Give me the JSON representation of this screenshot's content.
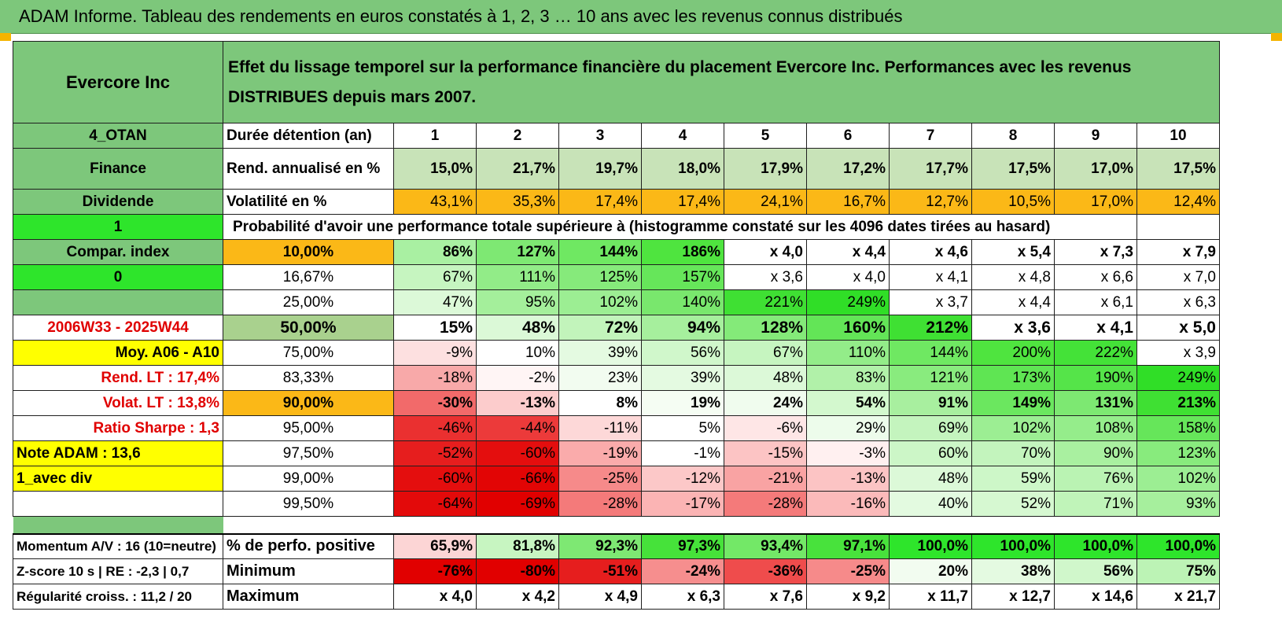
{
  "title": "ADAM Informe. Tableau des rendements en euros constatés à 1, 2, 3 … 10 ans avec les revenus connus distribués",
  "header": {
    "name": "Evercore Inc",
    "description": "Effet du lissage temporel sur la performance financière du placement Evercore Inc. Performances avec les revenus DISTRIBUES depuis mars 2007."
  },
  "side": {
    "code": "4_OTAN",
    "sector": "Finance",
    "type": "Dividende",
    "flag1": "1",
    "compar": "Compar. index",
    "flag0": "0",
    "empty": "",
    "period": "2006W33 - 2025W44",
    "moy": "Moy. A06 - A10",
    "rend_lt": "Rend. LT :    17,4%",
    "volat_lt": "Volat. LT :    13,8%",
    "sharpe": "Ratio Sharpe :     1,3",
    "note": "Note ADAM : 13,6",
    "avec_div": "1_avec div",
    "momentum": "Momentum A/V : 16 (10=neutre)",
    "zscore": "Z-score 10 s | RE : -2,3 | 0,7",
    "regularite": "Régularité croiss. : 11,2 / 20"
  },
  "labels": {
    "duree": "Durée détention (an)",
    "rend": "Rend. annualisé en %",
    "vol": "Volatilité en %",
    "proba": "Probabilité d'avoir une performance totale supérieure à (histogramme constaté sur les 4096 dates tirées au hasard)",
    "pct_pos": "% de perfo. positive",
    "min": "Minimum",
    "max": "Maximum"
  },
  "years": [
    "1",
    "2",
    "3",
    "4",
    "5",
    "6",
    "7",
    "8",
    "9",
    "10"
  ],
  "rend": [
    "15,0%",
    "21,7%",
    "19,7%",
    "18,0%",
    "17,9%",
    "17,2%",
    "17,7%",
    "17,5%",
    "17,0%",
    "17,5%"
  ],
  "vol": [
    "43,1%",
    "35,3%",
    "17,4%",
    "17,4%",
    "24,1%",
    "16,7%",
    "12,7%",
    "10,5%",
    "17,0%",
    "12,4%"
  ],
  "vol_colors": [
    "#fbb817",
    "#fbb817",
    "#fbb817",
    "#fbb817",
    "#fbb817",
    "#fbb817",
    "#fbb817",
    "#fbb817",
    "#fbb817",
    "#fbb817"
  ],
  "prob_rows": [
    {
      "p": "10,00%",
      "bold": true,
      "pbg": "#fbb817",
      "vals": [
        "86%",
        "127%",
        "144%",
        "186%",
        "x 4,0",
        "x 4,4",
        "x 4,6",
        "x 5,4",
        "x 7,3",
        "x 7,9"
      ],
      "colors": [
        "#a9f0a2",
        "#7ee873",
        "#6fe862",
        "#4fe43f",
        "#ffffff",
        "#ffffff",
        "#ffffff",
        "#ffffff",
        "#ffffff",
        "#ffffff"
      ]
    },
    {
      "p": "16,67%",
      "bold": false,
      "pbg": "#ffffff",
      "vals": [
        "67%",
        "111%",
        "125%",
        "157%",
        "x 3,6",
        "x 4,0",
        "x 4,1",
        "x 4,8",
        "x 6,6",
        "x 7,0"
      ],
      "colors": [
        "#c6f5c0",
        "#92ec88",
        "#86ea7b",
        "#66e65a",
        "#ffffff",
        "#ffffff",
        "#ffffff",
        "#ffffff",
        "#ffffff",
        "#ffffff"
      ]
    },
    {
      "p": "25,00%",
      "bold": false,
      "pbg": "#ffffff",
      "vals": [
        "47%",
        "95%",
        "102%",
        "140%",
        "221%",
        "249%",
        "x 3,7",
        "x 4,4",
        "x 6,1",
        "x 6,3"
      ],
      "colors": [
        "#dcf9d8",
        "#a4ef9b",
        "#9cee93",
        "#79e76d",
        "#3fe033",
        "#30de27",
        "#ffffff",
        "#ffffff",
        "#ffffff",
        "#ffffff"
      ]
    },
    {
      "p": "50,00%",
      "bold": true,
      "big": true,
      "pbg": "#a9d18e",
      "vals": [
        "15%",
        "48%",
        "72%",
        "94%",
        "128%",
        "160%",
        "212%",
        "x 3,6",
        "x 4,1",
        "x 5,0"
      ],
      "colors": [
        "#ffffff",
        "#dbf9d7",
        "#c2f4bb",
        "#a6ef9d",
        "#84ea79",
        "#63e557",
        "#3fe033",
        "#ffffff",
        "#ffffff",
        "#ffffff"
      ]
    },
    {
      "p": "75,00%",
      "bold": false,
      "pbg": "#ffffff",
      "vals": [
        "-9%",
        "10%",
        "39%",
        "56%",
        "67%",
        "110%",
        "144%",
        "200%",
        "222%",
        "x 3,9"
      ],
      "colors": [
        "#fde0e0",
        "#ffffff",
        "#e4fae1",
        "#d0f7cb",
        "#c6f5c0",
        "#93ec89",
        "#6fe862",
        "#4fe43f",
        "#44e238",
        "#ffffff"
      ]
    },
    {
      "p": "83,33%",
      "bold": false,
      "pbg": "#ffffff",
      "vals": [
        "-18%",
        "-2%",
        "23%",
        "39%",
        "48%",
        "83%",
        "121%",
        "173%",
        "190%",
        "249%"
      ],
      "colors": [
        "#f8a9a9",
        "#fff5f5",
        "#f2fcf0",
        "#e4fae1",
        "#dcf9d8",
        "#b1f1a9",
        "#89eb7e",
        "#5fe553",
        "#55e449",
        "#30de27"
      ]
    },
    {
      "p": "90,00%",
      "bold": true,
      "pbg": "#fbb817",
      "vals": [
        "-30%",
        "-13%",
        "8%",
        "19%",
        "24%",
        "54%",
        "91%",
        "149%",
        "131%",
        "213%"
      ],
      "colors": [
        "#f26a6a",
        "#fccccc",
        "#ffffff",
        "#f5fdf3",
        "#f0fcee",
        "#d3f8ce",
        "#a8ef9f",
        "#6be75f",
        "#7de872",
        "#3fe033"
      ]
    },
    {
      "p": "95,00%",
      "bold": false,
      "pbg": "#ffffff",
      "vals": [
        "-46%",
        "-44%",
        "-11%",
        "5%",
        "-6%",
        "29%",
        "69%",
        "102%",
        "108%",
        "158%"
      ],
      "colors": [
        "#ea3030",
        "#ec3a3a",
        "#fdd8d8",
        "#ffffff",
        "#fee6e6",
        "#edfceb",
        "#c4f4be",
        "#9cee93",
        "#95ed8b",
        "#66e65a"
      ]
    },
    {
      "p": "97,50%",
      "bold": false,
      "pbg": "#ffffff",
      "vals": [
        "-52%",
        "-60%",
        "-19%",
        "-1%",
        "-15%",
        "-3%",
        "60%",
        "70%",
        "90%",
        "123%"
      ],
      "colors": [
        "#e61e1e",
        "#e40e0e",
        "#faabab",
        "#ffffff",
        "#fcc4c4",
        "#fff0f0",
        "#ccf6c7",
        "#c3f4bd",
        "#a9f0a0",
        "#88eb7d"
      ]
    },
    {
      "p": "99,00%",
      "bold": false,
      "pbg": "#ffffff",
      "vals": [
        "-60%",
        "-66%",
        "-25%",
        "-12%",
        "-21%",
        "-13%",
        "48%",
        "59%",
        "76%",
        "102%"
      ],
      "colors": [
        "#e40e0e",
        "#e20505",
        "#f68a8a",
        "#fcc8c8",
        "#f9a3a3",
        "#fcc4c4",
        "#dcf9d8",
        "#cdf7c8",
        "#baf3b3",
        "#9cee93"
      ]
    },
    {
      "p": "99,50%",
      "bold": false,
      "pbg": "#ffffff",
      "vals": [
        "-64%",
        "-69%",
        "-28%",
        "-17%",
        "-28%",
        "-16%",
        "40%",
        "52%",
        "71%",
        "93%"
      ],
      "colors": [
        "#e30a0a",
        "#e10000",
        "#f47a7a",
        "#fbb4b4",
        "#f47a7a",
        "#fbbaba",
        "#e3fae0",
        "#d6f8d1",
        "#c0f4b9",
        "#a6ef9d"
      ]
    }
  ],
  "pct_pos": [
    "65,9%",
    "81,8%",
    "92,3%",
    "97,3%",
    "93,4%",
    "97,1%",
    "100,0%",
    "100,0%",
    "100,0%",
    "100,0%"
  ],
  "pct_pos_colors": [
    "#fcd5d5",
    "#c7f5c1",
    "#7ee873",
    "#46e23a",
    "#73e867",
    "#48e23c",
    "#2ee52b",
    "#2ee52b",
    "#2ee52b",
    "#2ee52b"
  ],
  "min": [
    "-76%",
    "-80%",
    "-51%",
    "-24%",
    "-36%",
    "-25%",
    "20%",
    "38%",
    "56%",
    "75%"
  ],
  "min_colors": [
    "#e10000",
    "#e10000",
    "#e61e1e",
    "#f68e8e",
    "#ef4c4c",
    "#f68a8a",
    "#f2fcf0",
    "#e4fae1",
    "#d0f7cb",
    "#bcf3b5"
  ],
  "max": [
    "x 4,0",
    "x 4,2",
    "x 4,9",
    "x 6,3",
    "x 7,6",
    "x 9,2",
    "x 11,7",
    "x 12,7",
    "x 14,6",
    "x 21,7"
  ],
  "colors": {
    "green": "#7dc77b",
    "orange": "#fbb817",
    "lime": "#2ee52b",
    "yellow": "#ffff00",
    "red": "#e00000"
  }
}
